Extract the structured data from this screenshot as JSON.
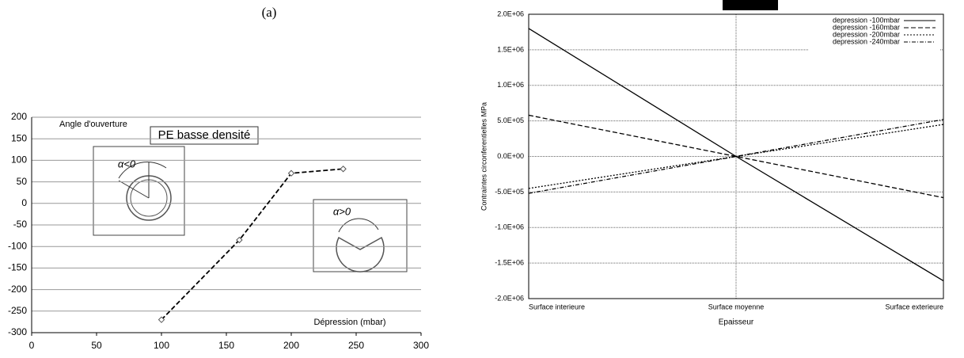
{
  "chart_data": [
    {
      "type": "line",
      "panel_label": "(a)",
      "title": "PE basse densité",
      "ylabel": "Angle d'ouverture",
      "xlabel": "Dépression (mbar)",
      "annotations": [
        "α<0",
        "α>0"
      ],
      "x": [
        100,
        160,
        200,
        240
      ],
      "series": [
        {
          "name": null,
          "color": "#000000",
          "dash": "dashed",
          "marker": "diamond",
          "values": [
            -270,
            -85,
            70,
            80
          ]
        }
      ],
      "xlim": [
        0,
        300
      ],
      "xticks": [
        0,
        50,
        100,
        150,
        200,
        250,
        300
      ],
      "ylim": [
        -300,
        200
      ],
      "yticks": [
        -300,
        -250,
        -200,
        -150,
        -100,
        -50,
        0,
        50,
        100,
        150,
        200
      ],
      "grid": true
    },
    {
      "type": "line",
      "ylabel": "Contraintes circonferentielles MPa",
      "xlabel": "Epaisseur",
      "categories": [
        "Surface interieure",
        "Surface moyenne",
        "Surface exterieure"
      ],
      "series": [
        {
          "name": "depression -100mbar",
          "color": "#000000",
          "dash": "solid",
          "values": [
            1800000,
            0,
            -1750000
          ]
        },
        {
          "name": "depression -160mbar",
          "color": "#000000",
          "dash": "dashed",
          "values": [
            580000,
            0,
            -580000
          ]
        },
        {
          "name": "depression -200mbar",
          "color": "#000000",
          "dash": "dotted",
          "values": [
            -450000,
            0,
            450000
          ]
        },
        {
          "name": "depression -240mbar",
          "color": "#000000",
          "dash": "dashdot",
          "values": [
            -520000,
            0,
            520000
          ]
        }
      ],
      "ylim": [
        -2000000,
        2000000
      ],
      "yticks": [
        {
          "value": -2000000,
          "label": "-2.0E+06"
        },
        {
          "value": -1500000,
          "label": "-1.5E+06"
        },
        {
          "value": -1000000,
          "label": "-1.0E+06"
        },
        {
          "value": -500000,
          "label": "-5.0E+05"
        },
        {
          "value": 0,
          "label": "0.0E+00"
        },
        {
          "value": 500000,
          "label": "5.0E+05"
        },
        {
          "value": 1000000,
          "label": "1.0E+06"
        },
        {
          "value": 1500000,
          "label": "1.5E+06"
        },
        {
          "value": 2000000,
          "label": "2.0E+06"
        }
      ],
      "grid": true,
      "legend": "upper right"
    }
  ]
}
